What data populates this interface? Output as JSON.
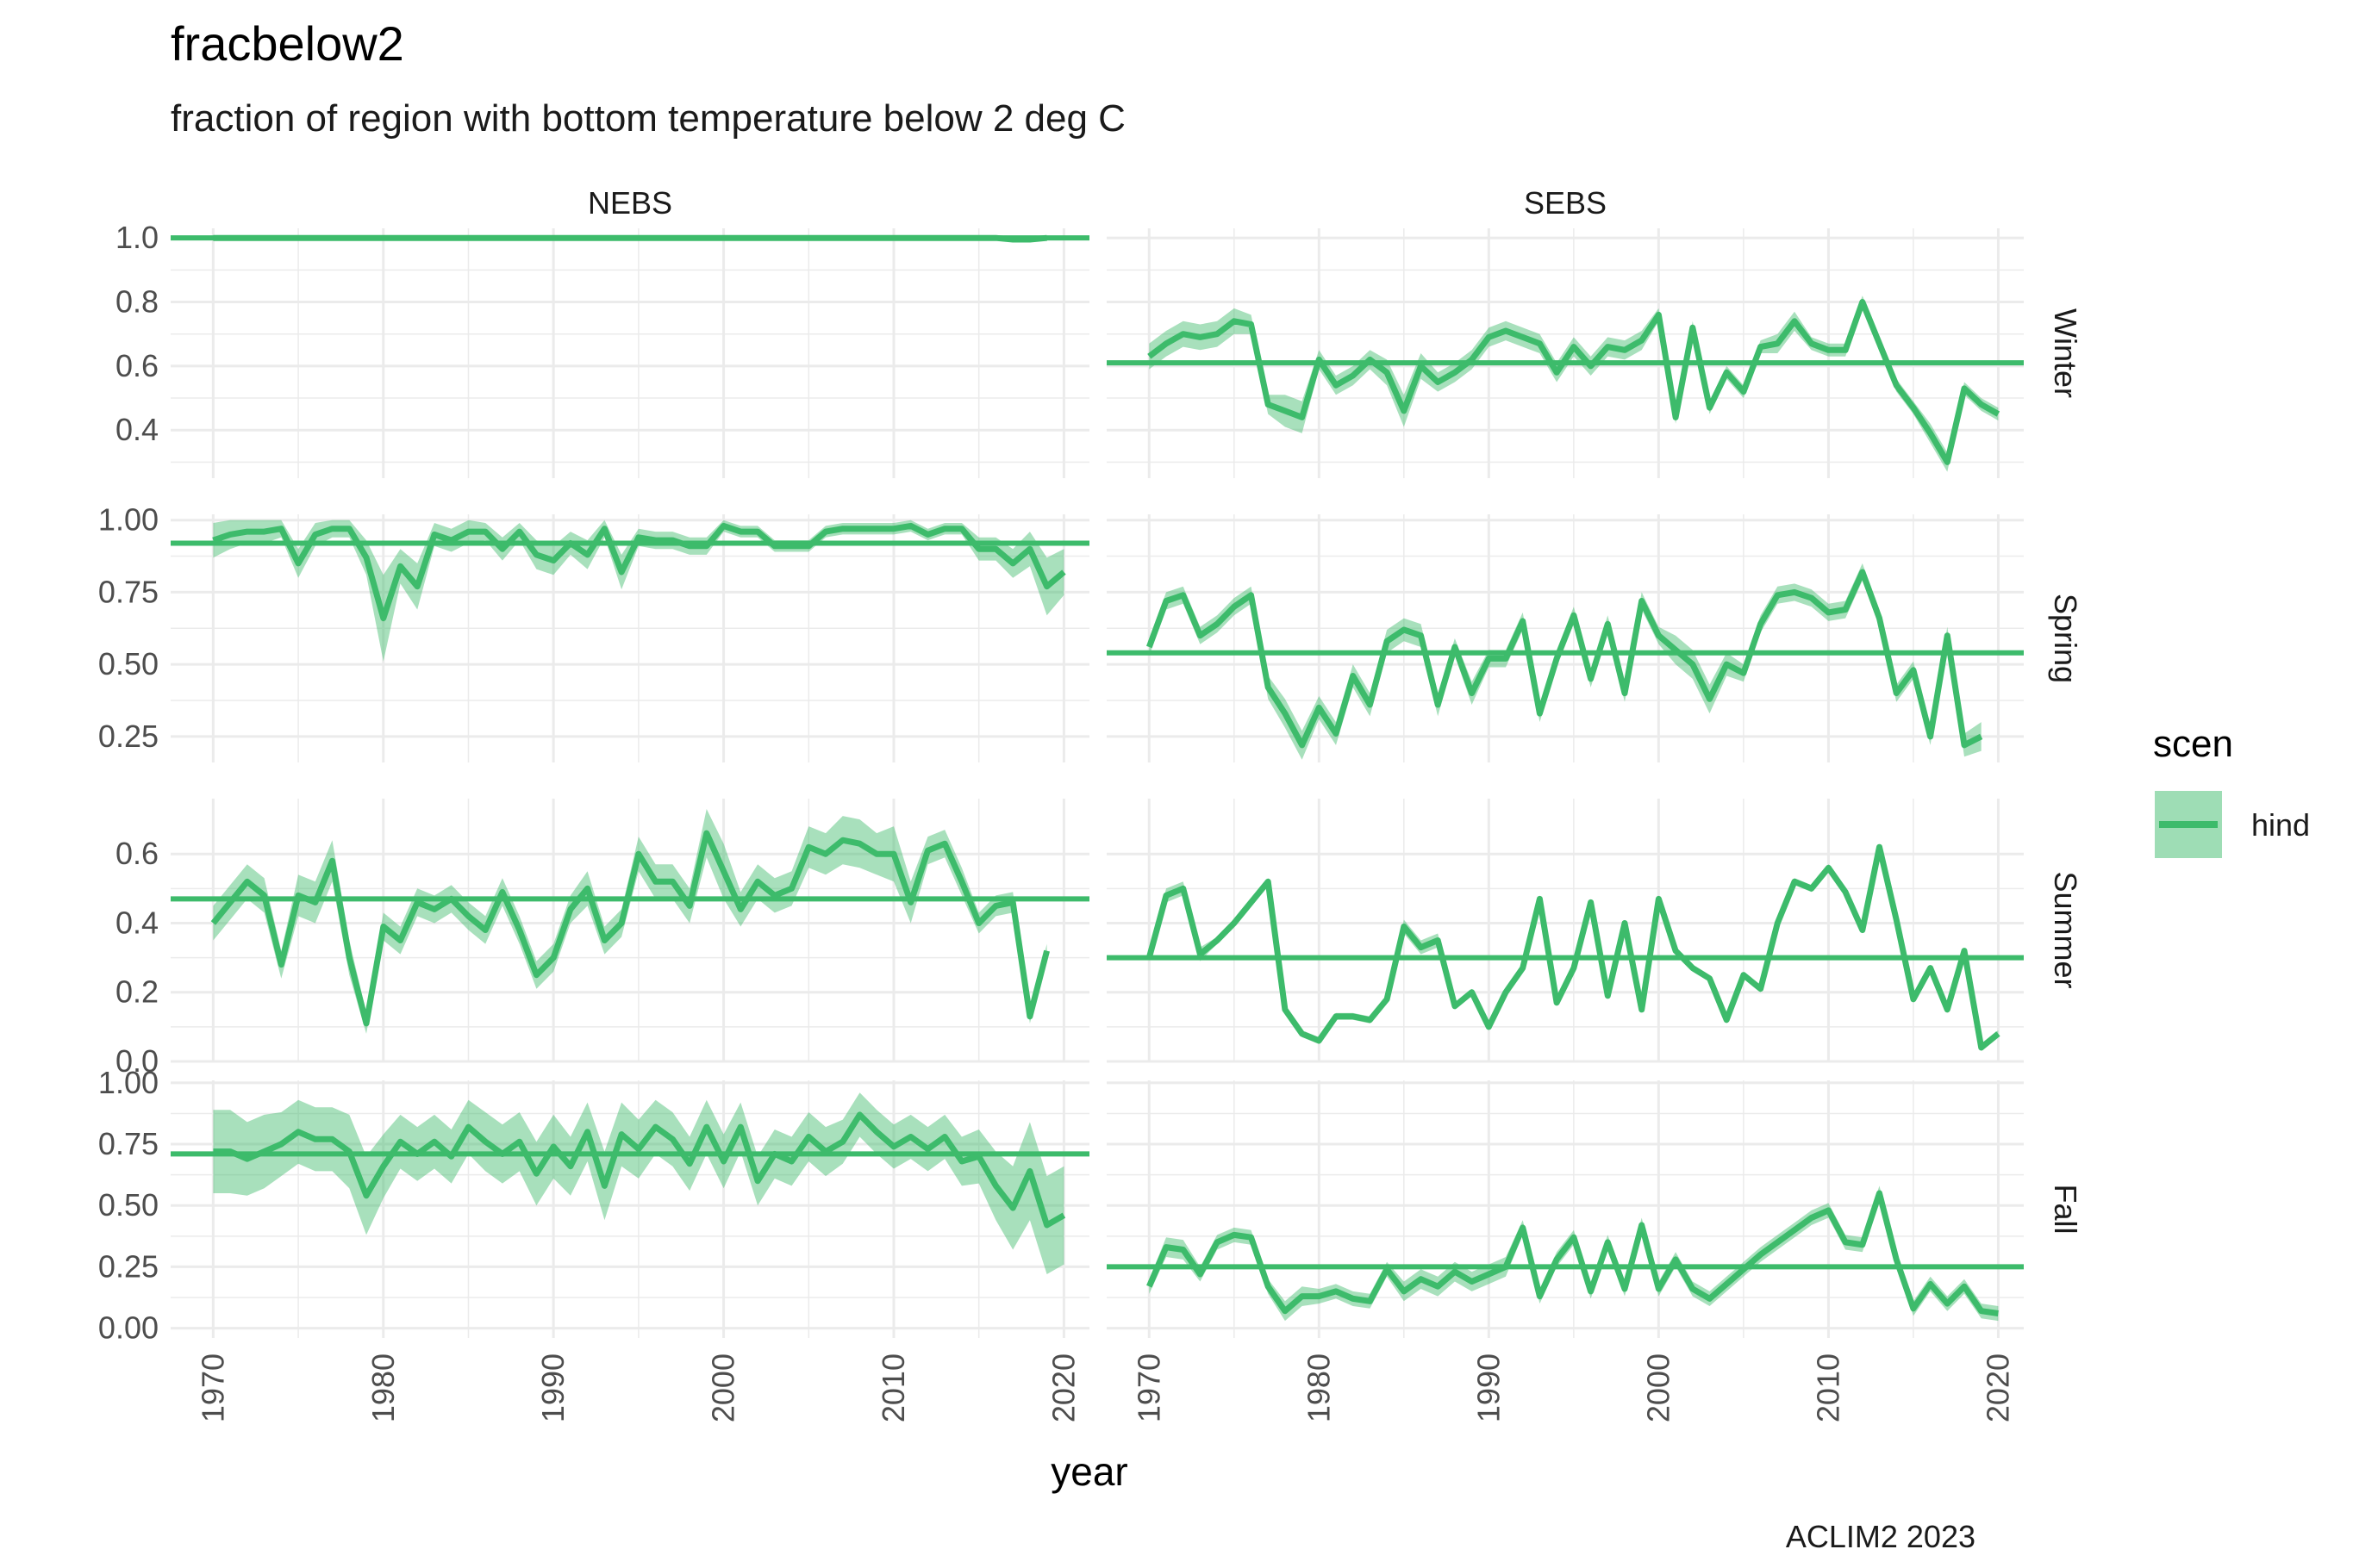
{
  "chart_data": {
    "type": "line",
    "title": "fracbelow2",
    "subtitle": "fraction of region with bottom temperature below 2 deg C",
    "xlabel": "year",
    "caption": "ACLIM2 2023",
    "columns": [
      "NEBS",
      "SEBS"
    ],
    "rows": [
      "Winter",
      "Spring",
      "Summer",
      "Fall"
    ],
    "x_range": [
      1967.5,
      2021.5
    ],
    "x_ticks": [
      1970,
      1980,
      1990,
      2000,
      2010,
      2020
    ],
    "colors": {
      "line": "#3dbb6b",
      "ribbon": "#3dbb6b"
    },
    "legend": {
      "title": "scen",
      "entries": [
        "hind"
      ],
      "position": "right"
    },
    "grid": true,
    "row_scales": [
      {
        "row": "Winter",
        "ylim": [
          0.25,
          1.03
        ],
        "ticks": [
          0.4,
          0.6,
          0.8,
          1.0
        ],
        "tick_labels": [
          "0.4",
          "0.6",
          "0.8",
          "1.0"
        ]
      },
      {
        "row": "Spring",
        "ylim": [
          0.16,
          1.02
        ],
        "ticks": [
          0.25,
          0.5,
          0.75,
          1.0
        ],
        "tick_labels": [
          "0.25",
          "0.50",
          "0.75",
          "1.00"
        ]
      },
      {
        "row": "Summer",
        "ylim": [
          0.0,
          0.76
        ],
        "ticks": [
          0.0,
          0.2,
          0.4,
          0.6
        ],
        "tick_labels": [
          "0.0",
          "0.2",
          "0.4",
          "0.6"
        ]
      },
      {
        "row": "Fall",
        "ylim": [
          -0.04,
          1.01
        ],
        "ticks": [
          0.0,
          0.25,
          0.5,
          0.75,
          1.0
        ],
        "tick_labels": [
          "0.00",
          "0.25",
          "0.50",
          "0.75",
          "1.00"
        ]
      }
    ],
    "x_start": 1970,
    "panels": [
      {
        "col": "NEBS",
        "row": "Winter",
        "mean": 1.0,
        "values": [
          1,
          1,
          1,
          1,
          1,
          1,
          1,
          1,
          1,
          1,
          1,
          1,
          1,
          1,
          1,
          1,
          1,
          1,
          1,
          1,
          1,
          1,
          1,
          1,
          1,
          1,
          1,
          1,
          1,
          1,
          1,
          1,
          1,
          1,
          1,
          1,
          1,
          1,
          1,
          1,
          1,
          1,
          1,
          1,
          1,
          1,
          1,
          0.995,
          0.995,
          1
        ],
        "band": [
          0,
          0,
          0,
          0,
          0,
          0,
          0,
          0,
          0,
          0,
          0,
          0,
          0,
          0,
          0,
          0,
          0,
          0,
          0,
          0,
          0,
          0,
          0,
          0,
          0,
          0,
          0,
          0,
          0,
          0,
          0,
          0,
          0,
          0,
          0,
          0,
          0,
          0,
          0,
          0,
          0,
          0,
          0,
          0,
          0,
          0,
          0.003,
          0.005,
          0.005,
          0.003
        ]
      },
      {
        "col": "SEBS",
        "row": "Winter",
        "mean": 0.61,
        "values": [
          0.63,
          0.67,
          0.7,
          0.69,
          0.7,
          0.74,
          0.73,
          0.48,
          0.46,
          0.44,
          0.62,
          0.54,
          0.57,
          0.62,
          0.58,
          0.46,
          0.6,
          0.55,
          0.58,
          0.62,
          0.69,
          0.71,
          0.69,
          0.67,
          0.58,
          0.66,
          0.6,
          0.66,
          0.65,
          0.68,
          0.76,
          0.44,
          0.72,
          0.47,
          0.58,
          0.52,
          0.66,
          0.67,
          0.74,
          0.67,
          0.65,
          0.65,
          0.8,
          0.67,
          0.54,
          0.47,
          0.39,
          0.3,
          0.53,
          0.48,
          0.45
        ],
        "band": [
          0.04,
          0.04,
          0.04,
          0.04,
          0.04,
          0.04,
          0.03,
          0.03,
          0.05,
          0.05,
          0.03,
          0.03,
          0.03,
          0.03,
          0.04,
          0.05,
          0.04,
          0.03,
          0.03,
          0.03,
          0.03,
          0.03,
          0.03,
          0.03,
          0.03,
          0.03,
          0.03,
          0.03,
          0.03,
          0.03,
          0.02,
          0.02,
          0.02,
          0.02,
          0.02,
          0.02,
          0.02,
          0.03,
          0.03,
          0.02,
          0.02,
          0.02,
          0.02,
          0.02,
          0.02,
          0.02,
          0.03,
          0.03,
          0.02,
          0.02,
          0.02
        ]
      },
      {
        "col": "NEBS",
        "row": "Spring",
        "mean": 0.92,
        "values": [
          0.93,
          0.95,
          0.96,
          0.96,
          0.97,
          0.85,
          0.95,
          0.97,
          0.97,
          0.87,
          0.66,
          0.84,
          0.77,
          0.95,
          0.93,
          0.96,
          0.96,
          0.9,
          0.96,
          0.88,
          0.86,
          0.92,
          0.88,
          0.97,
          0.82,
          0.94,
          0.93,
          0.93,
          0.91,
          0.91,
          0.98,
          0.96,
          0.96,
          0.91,
          0.91,
          0.91,
          0.96,
          0.97,
          0.97,
          0.97,
          0.97,
          0.98,
          0.95,
          0.97,
          0.97,
          0.9,
          0.9,
          0.85,
          0.9,
          0.77,
          0.82
        ],
        "band": [
          0.06,
          0.05,
          0.04,
          0.04,
          0.03,
          0.05,
          0.04,
          0.03,
          0.03,
          0.06,
          0.15,
          0.06,
          0.08,
          0.04,
          0.04,
          0.04,
          0.03,
          0.04,
          0.03,
          0.05,
          0.05,
          0.04,
          0.05,
          0.03,
          0.06,
          0.03,
          0.03,
          0.03,
          0.03,
          0.03,
          0.02,
          0.02,
          0.02,
          0.02,
          0.02,
          0.02,
          0.02,
          0.02,
          0.02,
          0.02,
          0.02,
          0.02,
          0.02,
          0.02,
          0.02,
          0.04,
          0.04,
          0.05,
          0.06,
          0.1,
          0.08
        ]
      },
      {
        "col": "SEBS",
        "row": "Spring",
        "mean": 0.54,
        "values": [
          0.56,
          0.72,
          0.74,
          0.6,
          0.64,
          0.7,
          0.74,
          0.42,
          0.33,
          0.22,
          0.35,
          0.26,
          0.46,
          0.36,
          0.58,
          0.62,
          0.6,
          0.36,
          0.56,
          0.4,
          0.52,
          0.52,
          0.65,
          0.33,
          0.52,
          0.67,
          0.45,
          0.64,
          0.4,
          0.72,
          0.6,
          0.55,
          0.5,
          0.38,
          0.5,
          0.47,
          0.64,
          0.74,
          0.75,
          0.73,
          0.68,
          0.69,
          0.82,
          0.66,
          0.4,
          0.48,
          0.25,
          0.6,
          0.22,
          0.25
        ],
        "band": [
          0.03,
          0.03,
          0.03,
          0.03,
          0.03,
          0.03,
          0.03,
          0.04,
          0.05,
          0.05,
          0.04,
          0.04,
          0.04,
          0.04,
          0.04,
          0.04,
          0.04,
          0.04,
          0.03,
          0.04,
          0.03,
          0.03,
          0.03,
          0.03,
          0.03,
          0.03,
          0.03,
          0.03,
          0.03,
          0.03,
          0.03,
          0.05,
          0.05,
          0.05,
          0.04,
          0.03,
          0.03,
          0.03,
          0.03,
          0.03,
          0.03,
          0.03,
          0.03,
          0.03,
          0.03,
          0.03,
          0.03,
          0.03,
          0.04,
          0.05
        ]
      },
      {
        "col": "NEBS",
        "row": "Summer",
        "mean": 0.47,
        "values": [
          0.4,
          0.46,
          0.52,
          0.48,
          0.28,
          0.48,
          0.46,
          0.58,
          0.3,
          0.11,
          0.39,
          0.35,
          0.46,
          0.44,
          0.47,
          0.42,
          0.38,
          0.49,
          0.38,
          0.25,
          0.3,
          0.44,
          0.5,
          0.35,
          0.4,
          0.6,
          0.52,
          0.52,
          0.45,
          0.66,
          0.55,
          0.44,
          0.52,
          0.48,
          0.5,
          0.62,
          0.6,
          0.64,
          0.63,
          0.6,
          0.6,
          0.46,
          0.61,
          0.63,
          0.52,
          0.4,
          0.45,
          0.46,
          0.13,
          0.32
        ],
        "band": [
          0.05,
          0.05,
          0.05,
          0.05,
          0.04,
          0.06,
          0.06,
          0.06,
          0.05,
          0.03,
          0.04,
          0.04,
          0.04,
          0.04,
          0.04,
          0.04,
          0.04,
          0.04,
          0.04,
          0.04,
          0.04,
          0.04,
          0.05,
          0.04,
          0.04,
          0.05,
          0.05,
          0.05,
          0.05,
          0.07,
          0.08,
          0.05,
          0.05,
          0.05,
          0.05,
          0.06,
          0.06,
          0.07,
          0.07,
          0.06,
          0.08,
          0.06,
          0.04,
          0.04,
          0.04,
          0.03,
          0.03,
          0.03,
          0.02,
          0.02
        ]
      },
      {
        "col": "SEBS",
        "row": "Summer",
        "mean": 0.3,
        "values": [
          0.3,
          0.48,
          0.5,
          0.31,
          0.35,
          0.4,
          0.46,
          0.52,
          0.15,
          0.08,
          0.06,
          0.13,
          0.13,
          0.12,
          0.18,
          0.39,
          0.33,
          0.35,
          0.16,
          0.2,
          0.1,
          0.2,
          0.27,
          0.47,
          0.17,
          0.27,
          0.46,
          0.19,
          0.4,
          0.15,
          0.47,
          0.32,
          0.27,
          0.24,
          0.12,
          0.25,
          0.21,
          0.4,
          0.52,
          0.5,
          0.56,
          0.49,
          0.38,
          0.62,
          0.41,
          0.18,
          0.27,
          0.15,
          0.32,
          0.04,
          0.08
        ],
        "band": [
          0.01,
          0.02,
          0.02,
          0.02,
          0.01,
          0.01,
          0.01,
          0.01,
          0.01,
          0.01,
          0.01,
          0.01,
          0.01,
          0.01,
          0.01,
          0.02,
          0.02,
          0.02,
          0.01,
          0.01,
          0.01,
          0.01,
          0.01,
          0.01,
          0.01,
          0.01,
          0.01,
          0.01,
          0.01,
          0.01,
          0.01,
          0.01,
          0.01,
          0.01,
          0.01,
          0.01,
          0.01,
          0.01,
          0.01,
          0.01,
          0.01,
          0.01,
          0.01,
          0.01,
          0.01,
          0.01,
          0.01,
          0.01,
          0.01,
          0.01,
          0.01
        ]
      },
      {
        "col": "NEBS",
        "row": "Fall",
        "mean": 0.71,
        "values": [
          0.72,
          0.72,
          0.69,
          0.72,
          0.75,
          0.8,
          0.77,
          0.77,
          0.72,
          0.54,
          0.66,
          0.76,
          0.71,
          0.76,
          0.7,
          0.82,
          0.76,
          0.71,
          0.76,
          0.63,
          0.74,
          0.66,
          0.8,
          0.58,
          0.79,
          0.73,
          0.82,
          0.77,
          0.67,
          0.82,
          0.68,
          0.82,
          0.6,
          0.71,
          0.68,
          0.78,
          0.72,
          0.76,
          0.87,
          0.8,
          0.74,
          0.78,
          0.73,
          0.78,
          0.68,
          0.7,
          0.58,
          0.49,
          0.64,
          0.42,
          0.46
        ],
        "band": [
          0.17,
          0.17,
          0.15,
          0.15,
          0.13,
          0.13,
          0.13,
          0.13,
          0.15,
          0.16,
          0.13,
          0.11,
          0.11,
          0.11,
          0.11,
          0.11,
          0.12,
          0.12,
          0.12,
          0.13,
          0.13,
          0.12,
          0.12,
          0.14,
          0.13,
          0.12,
          0.11,
          0.11,
          0.11,
          0.11,
          0.11,
          0.1,
          0.1,
          0.1,
          0.1,
          0.1,
          0.1,
          0.09,
          0.09,
          0.09,
          0.09,
          0.09,
          0.09,
          0.09,
          0.1,
          0.11,
          0.14,
          0.17,
          0.2,
          0.2,
          0.2
        ]
      },
      {
        "col": "SEBS",
        "row": "Fall",
        "mean": 0.25,
        "values": [
          0.17,
          0.33,
          0.32,
          0.22,
          0.35,
          0.38,
          0.37,
          0.17,
          0.07,
          0.13,
          0.13,
          0.15,
          0.12,
          0.11,
          0.24,
          0.15,
          0.2,
          0.17,
          0.23,
          0.19,
          0.22,
          0.25,
          0.41,
          0.13,
          0.28,
          0.37,
          0.15,
          0.35,
          0.16,
          0.42,
          0.16,
          0.28,
          0.16,
          0.12,
          0.18,
          0.24,
          0.3,
          0.35,
          0.4,
          0.45,
          0.48,
          0.35,
          0.34,
          0.55,
          0.28,
          0.08,
          0.18,
          0.1,
          0.17,
          0.07,
          0.06
        ],
        "band": [
          0.03,
          0.04,
          0.04,
          0.03,
          0.03,
          0.03,
          0.03,
          0.03,
          0.04,
          0.04,
          0.03,
          0.03,
          0.03,
          0.03,
          0.03,
          0.04,
          0.04,
          0.04,
          0.04,
          0.04,
          0.04,
          0.04,
          0.03,
          0.03,
          0.03,
          0.03,
          0.03,
          0.03,
          0.03,
          0.03,
          0.03,
          0.03,
          0.03,
          0.03,
          0.03,
          0.03,
          0.03,
          0.03,
          0.03,
          0.03,
          0.03,
          0.03,
          0.03,
          0.03,
          0.03,
          0.03,
          0.03,
          0.03,
          0.03,
          0.03,
          0.03
        ]
      }
    ]
  }
}
